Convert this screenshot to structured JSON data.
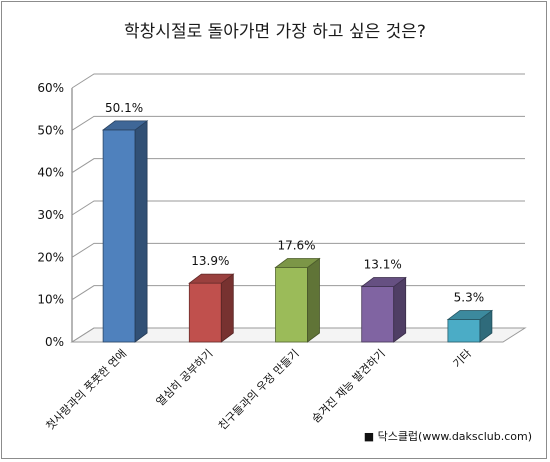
{
  "chart_data": {
    "type": "bar",
    "title": "학창시절로 돌아가면 가장 하고 싶은 것은?",
    "categories": [
      "첫사랑과의 풋풋한 연애",
      "열심히 공부하기",
      "친구들과의 우정 만들기",
      "숨겨진 재능 발견하기",
      "기타"
    ],
    "values": [
      50.1,
      13.9,
      17.6,
      13.1,
      5.3
    ],
    "value_labels": [
      "50.1%",
      "13.9%",
      "17.6%",
      "13.1%",
      "5.3%"
    ],
    "ylim": [
      0,
      60
    ],
    "yticks": [
      0,
      10,
      20,
      30,
      40,
      50,
      60
    ],
    "ytick_labels": [
      "0%",
      "10%",
      "20%",
      "30%",
      "40%",
      "50%",
      "60%"
    ],
    "grid": true,
    "style": "3d",
    "colors": [
      "#4f81bd",
      "#c0504d",
      "#9bbb59",
      "#8064a2",
      "#4bacc6"
    ]
  },
  "source": "■ 닥스클럽(www.daksclub.com)"
}
